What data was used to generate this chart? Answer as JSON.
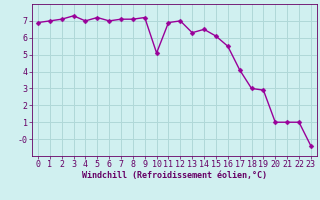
{
  "x": [
    0,
    1,
    2,
    3,
    4,
    5,
    6,
    7,
    8,
    9,
    10,
    11,
    12,
    13,
    14,
    15,
    16,
    17,
    18,
    19,
    20,
    21,
    22,
    23
  ],
  "y": [
    6.9,
    7.0,
    7.1,
    7.3,
    7.0,
    7.2,
    7.0,
    7.1,
    7.1,
    7.2,
    5.1,
    6.9,
    7.0,
    6.3,
    6.5,
    6.1,
    5.5,
    4.1,
    3.0,
    2.9,
    1.0,
    1.0,
    1.0,
    -0.4
  ],
  "line_color": "#990099",
  "marker_color": "#990099",
  "bg_color": "#d0f0f0",
  "grid_color": "#b0d8d8",
  "xlabel": "Windchill (Refroidissement éolien,°C)",
  "ylabel": "",
  "ylim": [
    -1,
    8
  ],
  "xlim": [
    -0.5,
    23.5
  ],
  "yticks": [
    0,
    1,
    2,
    3,
    4,
    5,
    6,
    7
  ],
  "ytick_labels": [
    "-0",
    "1",
    "2",
    "3",
    "4",
    "5",
    "6",
    "7"
  ],
  "xticks": [
    0,
    1,
    2,
    3,
    4,
    5,
    6,
    7,
    8,
    9,
    10,
    11,
    12,
    13,
    14,
    15,
    16,
    17,
    18,
    19,
    20,
    21,
    22,
    23
  ],
  "axis_label_color": "#660066",
  "tick_color": "#660066",
  "font_size_xlabel": 6.0,
  "font_size_ticks": 6.0,
  "linewidth": 1.0,
  "markersize": 2.5
}
